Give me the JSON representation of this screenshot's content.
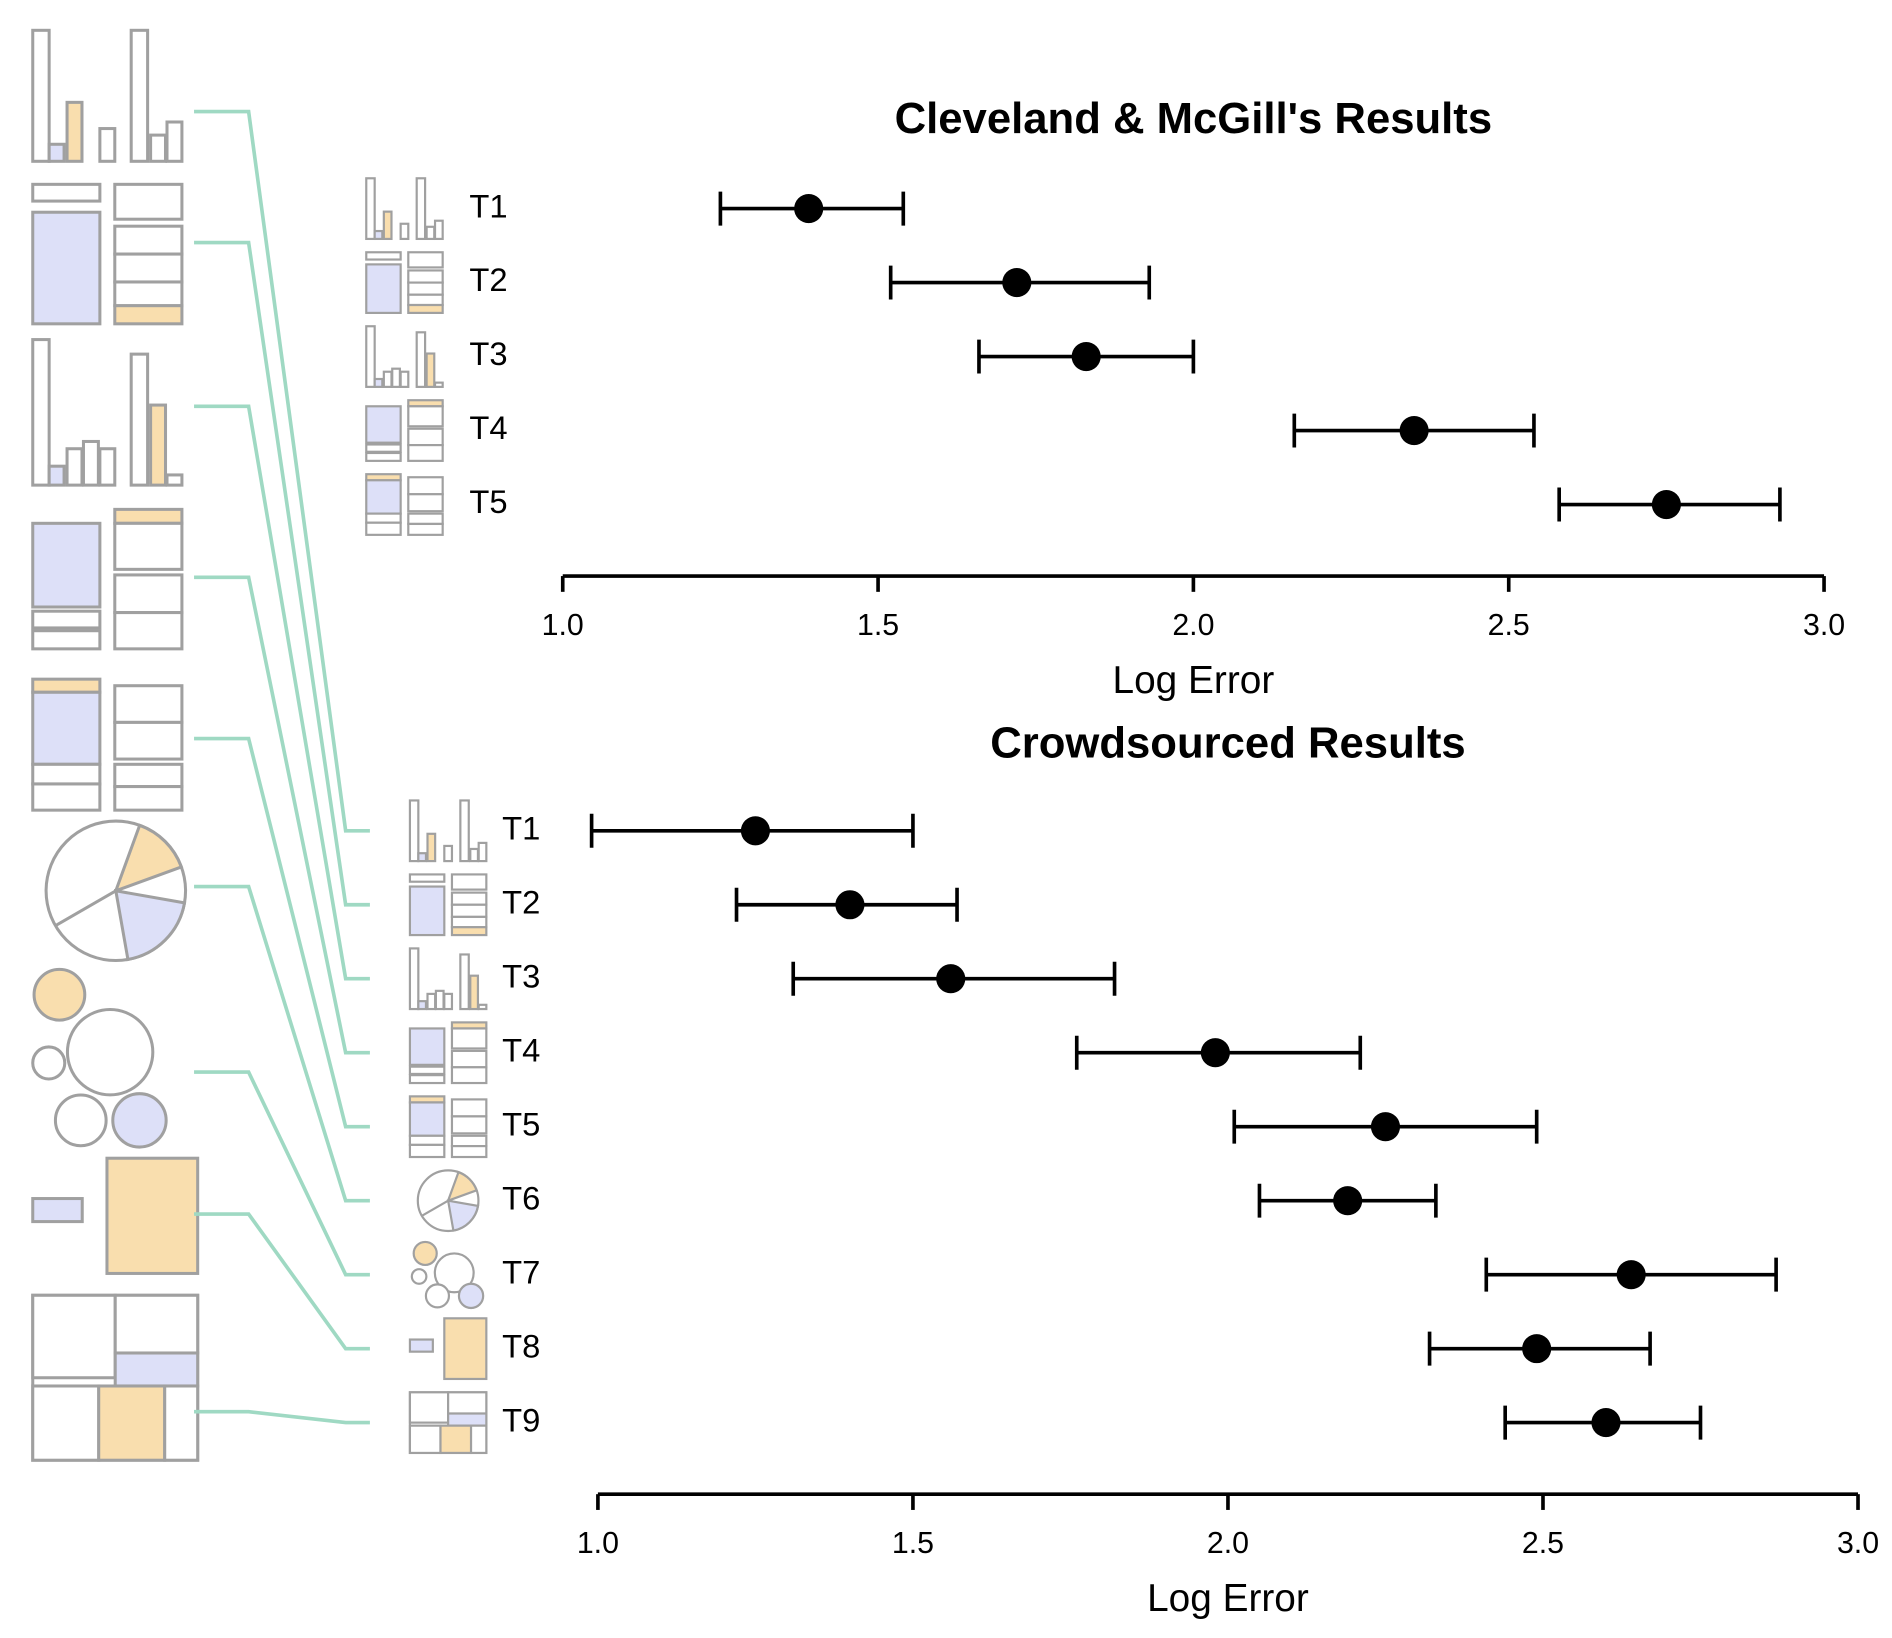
{
  "chart_data": [
    {
      "type": "dot",
      "title": "Cleveland & McGill's Results",
      "x_label": "Log Error",
      "color": "#000000",
      "categories": [
        "T1",
        "T2",
        "T3",
        "T4",
        "T5"
      ],
      "values": [
        1.39,
        1.72,
        1.83,
        2.35,
        2.75
      ],
      "low": [
        1.25,
        1.52,
        1.66,
        2.16,
        2.58
      ],
      "high": [
        1.54,
        1.93,
        2.0,
        2.54,
        2.93
      ],
      "xlim": [
        1,
        3
      ],
      "xticks": [
        {
          "value": 1,
          "label": "1.0"
        },
        1.5,
        {
          "value": 2,
          "label": "2.0"
        },
        2.5,
        {
          "value": 3,
          "label": "3.0"
        }
      ]
    },
    {
      "type": "dot",
      "title": "Crowdsourced Results",
      "x_label": "Log Error",
      "color": "#000000",
      "categories": [
        "T1",
        "T2",
        "T3",
        "T4",
        "T5",
        "T6",
        "T7",
        "T8",
        "T9"
      ],
      "values": [
        1.25,
        1.4,
        1.56,
        1.98,
        2.25,
        2.19,
        2.64,
        2.49,
        2.6
      ],
      "low": [
        0.99,
        1.22,
        1.31,
        1.76,
        2.01,
        2.05,
        2.41,
        2.32,
        2.44
      ],
      "high": [
        1.5,
        1.57,
        1.82,
        2.21,
        2.49,
        2.33,
        2.87,
        2.67,
        2.75
      ],
      "xlim": [
        1,
        3
      ],
      "xticks": [
        {
          "value": 1,
          "label": "1.0"
        },
        1.5,
        {
          "value": 2,
          "label": "2.0"
        },
        2.5,
        {
          "value": 3,
          "label": "3.0"
        }
      ]
    }
  ]
}
